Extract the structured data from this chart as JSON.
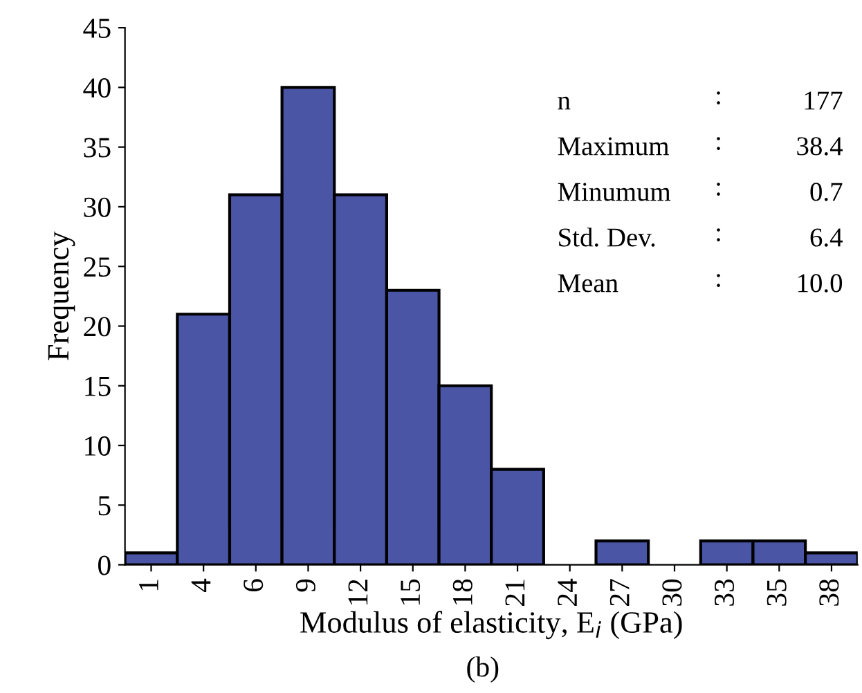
{
  "chart_data": {
    "type": "bar",
    "xlabel": "Modulus of elasticity, E$_{i}$ (GPa)",
    "ylabel": "Frequency",
    "categories": [
      "1",
      "4",
      "6",
      "9",
      "12",
      "15",
      "18",
      "21",
      "24",
      "27",
      "30",
      "33",
      "35",
      "38"
    ],
    "values": [
      1,
      21,
      31,
      40,
      31,
      23,
      15,
      8,
      0,
      2,
      0,
      2,
      2,
      1
    ],
    "color": "#4a55a5",
    "ylim": [
      0,
      45
    ],
    "yticks": [
      0,
      5,
      10,
      15,
      20,
      25,
      30,
      35,
      40,
      45
    ],
    "grid": false,
    "legend": false,
    "annotations": [
      "n : 177",
      "Maximum : 38.4",
      "Minumum : 0.7",
      "Std. Dev. : 6.4",
      "Mean : 10.0",
      "(b)"
    ]
  }
}
